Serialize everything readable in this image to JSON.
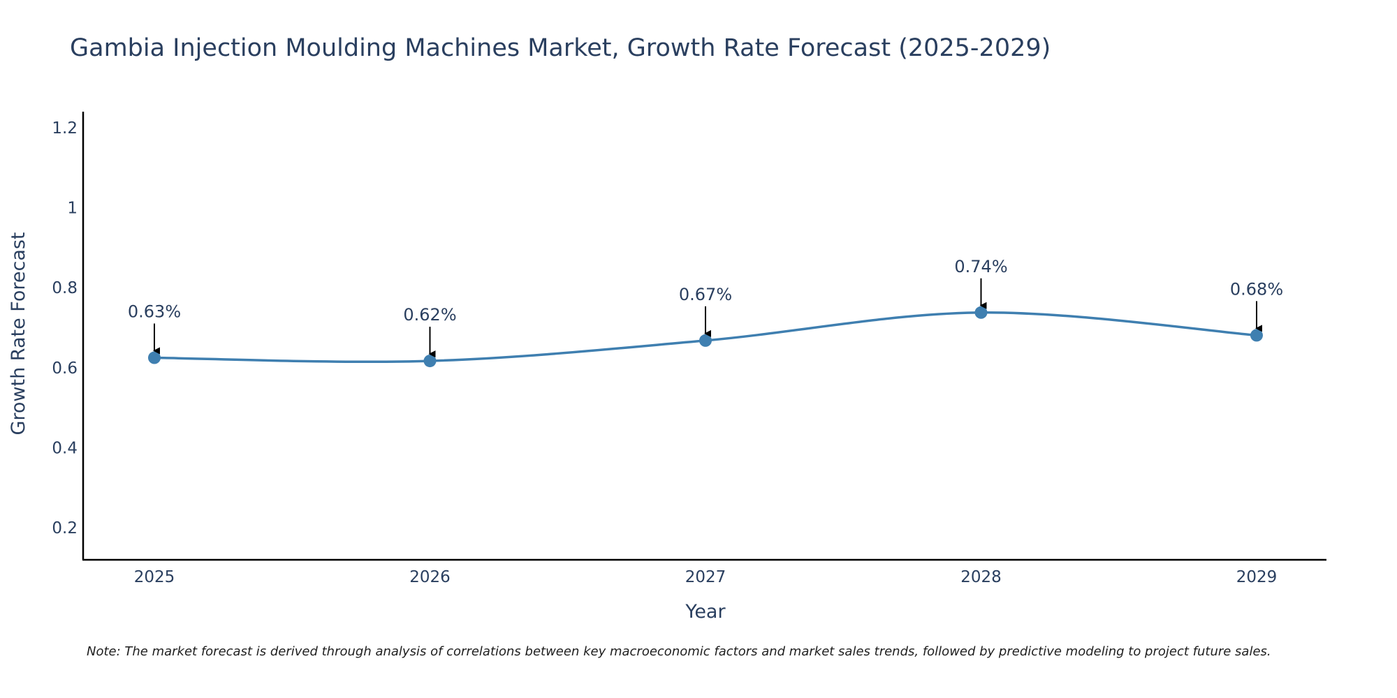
{
  "chart_data": {
    "type": "line",
    "title": "Gambia Injection Moulding Machines Market, Growth Rate Forecast (2025-2029)",
    "xlabel": "Year",
    "ylabel": "Growth Rate Forecast",
    "categories": [
      "2025",
      "2026",
      "2027",
      "2028",
      "2029"
    ],
    "series": [
      {
        "name": "Growth Rate Forecast",
        "values": [
          0.625,
          0.617,
          0.668,
          0.738,
          0.681
        ],
        "labels": [
          "0.63%",
          "0.62%",
          "0.67%",
          "0.74%",
          "0.68%"
        ]
      }
    ],
    "ylim": [
      0.12,
      1.24
    ],
    "yticks": [
      0.2,
      0.4,
      0.6,
      0.8,
      1,
      1.2
    ],
    "ytick_labels": [
      "0.2",
      "0.4",
      "0.6",
      "0.8",
      "1",
      "1.2"
    ],
    "grid": false,
    "line_color": "#3f7fb0",
    "annotation_arrow_color": "#000000",
    "note": "Note: The market forecast is derived through analysis of correlations between key macroeconomic factors and market sales trends, followed by predictive modeling to project future sales."
  }
}
